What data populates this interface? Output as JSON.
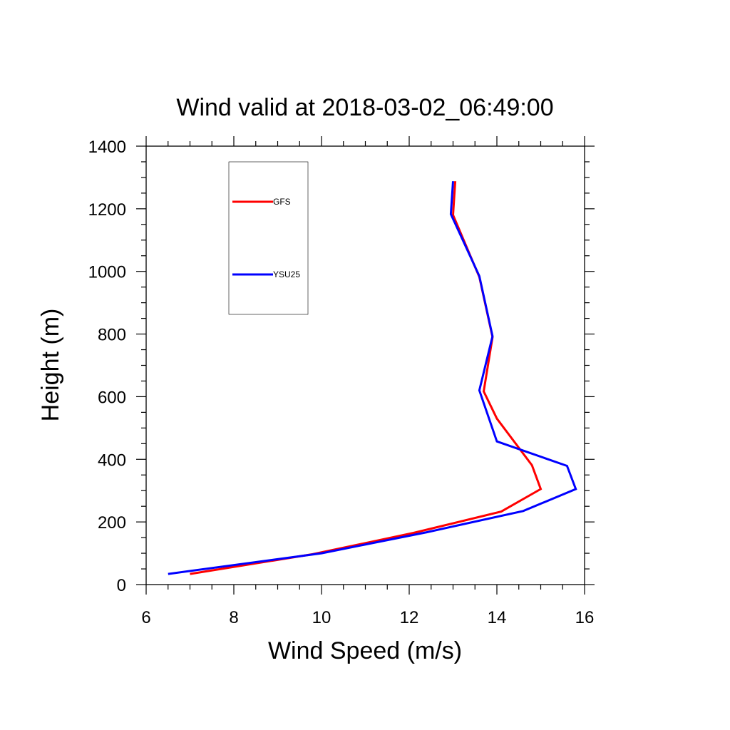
{
  "chart_data": {
    "type": "line",
    "title": "Wind valid at 2018-03-02_06:49:00",
    "xlabel": "Wind Speed (m/s)",
    "ylabel": "Height (m)",
    "xlim": [
      6,
      16
    ],
    "ylim": [
      0,
      1400
    ],
    "xticks": [
      "6",
      "8",
      "10",
      "12",
      "14",
      "16"
    ],
    "yticks": [
      "0",
      "200",
      "400",
      "600",
      "800",
      "1000",
      "1200",
      "1400"
    ],
    "grid": false,
    "legend_position": "top-left",
    "series": [
      {
        "name": "GFS",
        "color": "#ff0000",
        "points": [
          {
            "x": 7.0,
            "y": 34
          },
          {
            "x": 9.8,
            "y": 97
          },
          {
            "x": 12.1,
            "y": 165
          },
          {
            "x": 14.1,
            "y": 233
          },
          {
            "x": 15.0,
            "y": 305
          },
          {
            "x": 14.8,
            "y": 381
          },
          {
            "x": 14.0,
            "y": 530
          },
          {
            "x": 13.7,
            "y": 617
          },
          {
            "x": 13.9,
            "y": 790
          },
          {
            "x": 13.6,
            "y": 982
          },
          {
            "x": 13.0,
            "y": 1180
          },
          {
            "x": 13.05,
            "y": 1288
          }
        ]
      },
      {
        "name": "YSU25",
        "color": "#0000ff",
        "points": [
          {
            "x": 6.5,
            "y": 34
          },
          {
            "x": 10.0,
            "y": 100
          },
          {
            "x": 12.4,
            "y": 167
          },
          {
            "x": 14.6,
            "y": 235
          },
          {
            "x": 15.8,
            "y": 305
          },
          {
            "x": 15.6,
            "y": 379
          },
          {
            "x": 14.0,
            "y": 457
          },
          {
            "x": 13.6,
            "y": 620
          },
          {
            "x": 13.9,
            "y": 793
          },
          {
            "x": 13.6,
            "y": 985
          },
          {
            "x": 12.95,
            "y": 1183
          },
          {
            "x": 13.0,
            "y": 1288
          }
        ]
      }
    ]
  }
}
